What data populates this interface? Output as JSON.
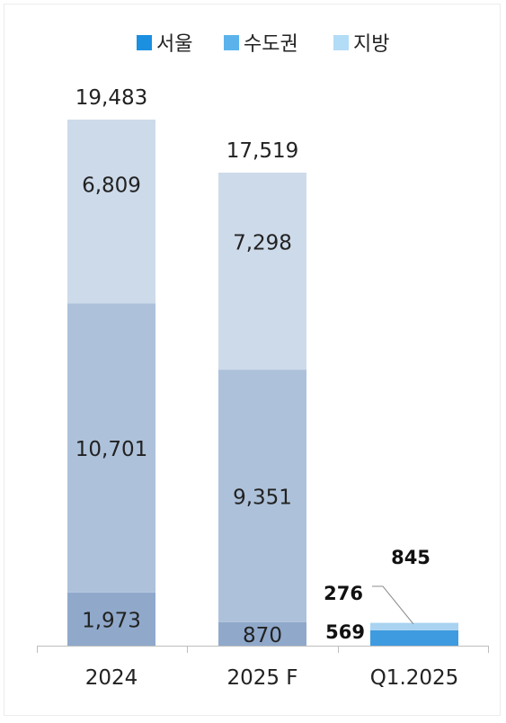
{
  "chart_data": {
    "type": "bar",
    "stacked": true,
    "categories": [
      "2024",
      "2025 F",
      "Q1.2025"
    ],
    "series": [
      {
        "name": "서울",
        "values": [
          1973,
          870,
          569
        ]
      },
      {
        "name": "수도권",
        "values": [
          10701,
          9351,
          0
        ]
      },
      {
        "name": "지방",
        "values": [
          6809,
          7298,
          276
        ]
      }
    ],
    "totals": [
      19483,
      17519,
      845
    ],
    "value_labels": {
      "서울": [
        "1,973",
        "870",
        "569"
      ],
      "수도권": [
        "10,701",
        "9,351",
        ""
      ],
      "지방": [
        "6,809",
        "7,298",
        "276"
      ]
    },
    "total_labels": [
      "19,483",
      "17,519",
      "845"
    ],
    "legend_position": "top",
    "ylim": [
      0,
      19483
    ],
    "grid": false,
    "colors": {
      "stack_2024_2025": [
        "#90a9cb",
        "#adc1da",
        "#cddaea"
      ],
      "stack_q1": [
        "#3f9be0",
        "#5aaee6",
        "#a9d3f1"
      ],
      "legend": [
        "#1b8fe0",
        "#5cb3ec",
        "#b3dcf6"
      ],
      "axis": "#bdbdbd",
      "leader": "#8c8c8c"
    }
  }
}
